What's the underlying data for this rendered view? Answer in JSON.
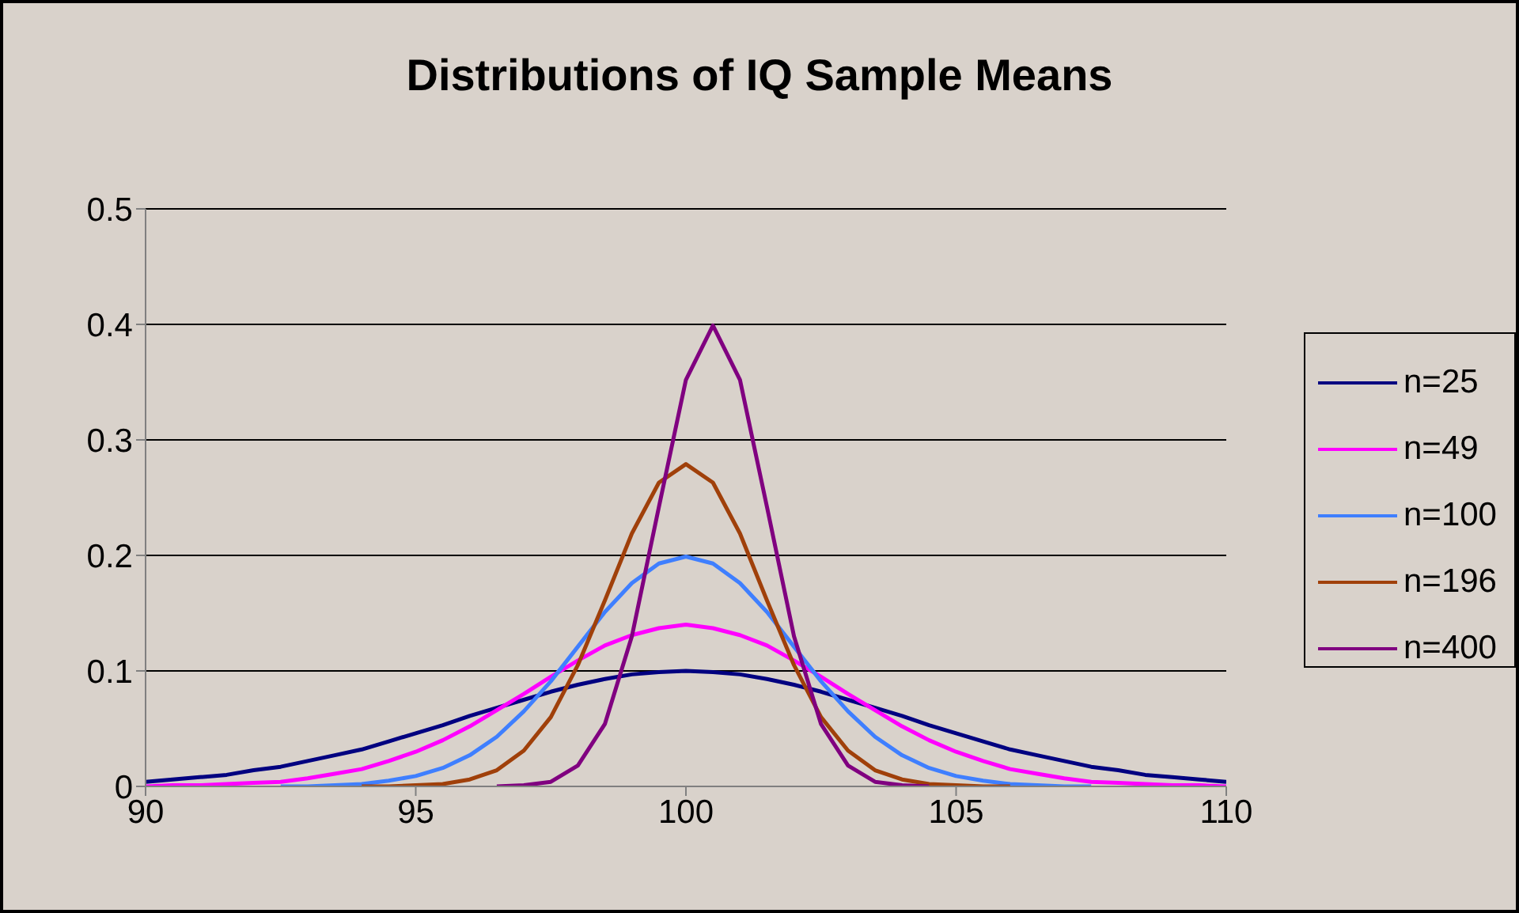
{
  "chart_data": {
    "type": "line",
    "title": "Distributions of IQ Sample Means",
    "x": [
      90,
      90.5,
      91,
      91.5,
      92,
      92.5,
      93,
      93.5,
      94,
      94.5,
      95,
      95.5,
      96,
      96.5,
      97,
      97.5,
      98,
      98.5,
      99,
      99.5,
      100,
      100.5,
      101,
      101.5,
      102,
      102.5,
      103,
      103.5,
      104,
      104.5,
      105,
      105.5,
      106,
      106.5,
      107,
      107.5,
      108,
      108.5,
      109,
      109.5,
      110
    ],
    "series": [
      {
        "name": "n=25",
        "color": "#000080",
        "values": [
          0.004,
          0.006,
          0.008,
          0.01,
          0.014,
          0.017,
          0.022,
          0.027,
          0.032,
          0.039,
          0.046,
          0.053,
          0.061,
          0.068,
          0.075,
          0.082,
          0.088,
          0.093,
          0.097,
          0.099,
          0.1,
          0.099,
          0.097,
          0.093,
          0.088,
          0.082,
          0.075,
          0.068,
          0.061,
          0.053,
          0.046,
          0.039,
          0.032,
          0.027,
          0.022,
          0.017,
          0.014,
          0.01,
          0.008,
          0.006,
          0.004
        ]
      },
      {
        "name": "n=49",
        "color": "#ff00ff",
        "values": [
          0,
          0.001,
          0.001,
          0.002,
          0.003,
          0.004,
          0.007,
          0.011,
          0.015,
          0.022,
          0.03,
          0.04,
          0.052,
          0.066,
          0.08,
          0.095,
          0.109,
          0.122,
          0.131,
          0.137,
          0.14,
          0.137,
          0.131,
          0.122,
          0.109,
          0.095,
          0.08,
          0.066,
          0.052,
          0.04,
          0.03,
          0.022,
          0.015,
          0.011,
          0.007,
          0.004,
          0.003,
          0.002,
          0.001,
          0.001,
          0
        ]
      },
      {
        "name": "n=100",
        "color": "#3f7fff",
        "values": [
          null,
          null,
          null,
          null,
          null,
          0,
          0,
          0.001,
          0.002,
          0.005,
          0.009,
          0.016,
          0.027,
          0.043,
          0.065,
          0.091,
          0.121,
          0.151,
          0.176,
          0.193,
          0.199,
          0.193,
          0.176,
          0.151,
          0.121,
          0.091,
          0.065,
          0.043,
          0.027,
          0.016,
          0.009,
          0.005,
          0.002,
          0.001,
          0,
          0,
          null,
          null,
          null,
          null,
          null
        ]
      },
      {
        "name": "n=196",
        "color": "#a0400a",
        "values": [
          null,
          null,
          null,
          null,
          null,
          null,
          null,
          null,
          0,
          0,
          0.001,
          0.002,
          0.006,
          0.014,
          0.031,
          0.06,
          0.105,
          0.161,
          0.219,
          0.263,
          0.279,
          0.263,
          0.219,
          0.161,
          0.105,
          0.06,
          0.031,
          0.014,
          0.006,
          0.002,
          0.001,
          0,
          0,
          null,
          null,
          null,
          null,
          null,
          null,
          null,
          null
        ]
      },
      {
        "name": "n=400",
        "color": "#800080",
        "values": [
          null,
          null,
          null,
          null,
          null,
          null,
          null,
          null,
          null,
          null,
          null,
          null,
          null,
          0,
          0.001,
          0.004,
          0.018,
          0.054,
          0.13,
          0.242,
          0.352,
          0.399,
          0.352,
          0.242,
          0.13,
          0.054,
          0.018,
          0.004,
          0.001,
          0,
          null,
          null,
          null,
          null,
          null,
          null,
          null,
          null,
          null,
          null,
          null
        ]
      }
    ],
    "xlim": [
      90,
      110
    ],
    "xticks": [
      90,
      95,
      100,
      105,
      110
    ],
    "ylim": [
      0,
      0.5
    ],
    "yticks": [
      0,
      0.1,
      0.2,
      0.3,
      0.4,
      0.5
    ],
    "grid": "y",
    "legend": "right",
    "marker": "none",
    "line_style": "solid"
  }
}
